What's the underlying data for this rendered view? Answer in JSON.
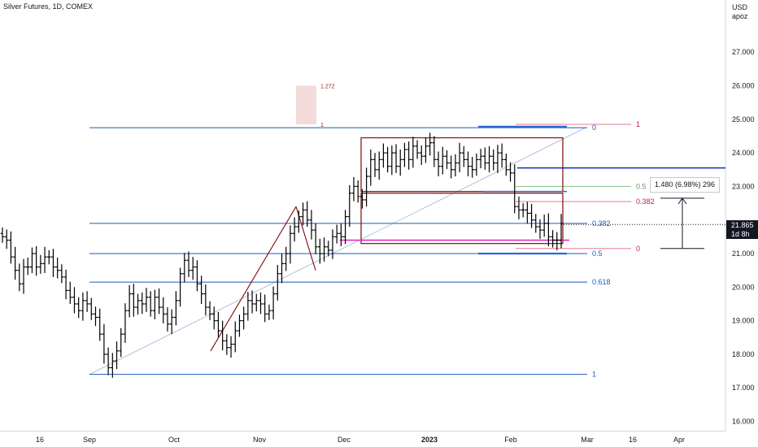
{
  "header": {
    "title": "Silver Futures, 1D, COMEX"
  },
  "price_axis": {
    "unit_line1": "USD",
    "unit_line2": "apoz",
    "current_price": "21.865",
    "countdown": "1d 8h"
  },
  "measure_label": "1.480 (6.98%) 296",
  "colors": {
    "bars": "#000000",
    "fib_blue": "#1e5bb8",
    "fib_level_text": "#1e5bb8",
    "pink": "#e57a95",
    "rect_border": "#8b1a1a",
    "magenta": "#e020c0",
    "dark_blue": "#0a2fb0",
    "trendline": "#b0bfe0",
    "green": "#7fc28a"
  },
  "chart_data": {
    "type": "bar",
    "title": "Silver Futures, 1D, COMEX",
    "ylabel": "USD apoz",
    "ylim": [
      15.9,
      28.2
    ],
    "y_ticks": [
      "16.000",
      "17.000",
      "18.000",
      "19.000",
      "20.000",
      "21.000",
      "22.000",
      "23.000",
      "24.000",
      "25.000",
      "26.000",
      "27.000"
    ],
    "x_ticks": [
      "16",
      "Sep",
      "Oct",
      "Nov",
      "Dec",
      "2023",
      "Feb",
      "Mar",
      "16",
      "Apr"
    ],
    "series": [
      {
        "name": "Silver Futures",
        "closes": [
          21.5,
          21.4,
          20.9,
          20.5,
          20.1,
          20.6,
          20.6,
          21.0,
          20.6,
          20.7,
          20.9,
          20.9,
          20.6,
          20.5,
          20.3,
          19.9,
          19.7,
          19.5,
          19.3,
          19.6,
          19.5,
          19.2,
          19.1,
          18.6,
          18.0,
          17.6,
          17.8,
          18.1,
          18.6,
          19.3,
          19.8,
          19.4,
          19.6,
          19.5,
          19.7,
          19.3,
          19.7,
          19.4,
          19.2,
          18.9,
          19.1,
          19.6,
          20.4,
          20.8,
          20.5,
          20.6,
          20.1,
          19.8,
          19.4,
          19.2,
          19.0,
          18.7,
          18.4,
          18.2,
          18.3,
          18.7,
          19.0,
          19.2,
          19.6,
          19.5,
          19.6,
          19.5,
          19.2,
          19.3,
          19.8,
          20.4,
          20.7,
          21.0,
          21.6,
          21.8,
          22.1,
          22.3,
          22.0,
          21.7,
          21.2,
          21.0,
          21.2,
          21.1,
          21.5,
          21.6,
          21.5,
          22.1,
          22.8,
          23.0,
          22.7,
          22.6,
          23.3,
          23.8,
          23.5,
          23.8,
          24.0,
          23.6,
          24.0,
          23.6,
          23.8,
          24.1,
          23.8,
          24.2,
          24.0,
          23.9,
          24.2,
          24.3,
          23.8,
          23.6,
          23.9,
          23.7,
          23.5,
          23.7,
          24.0,
          23.8,
          23.6,
          23.5,
          23.8,
          23.9,
          23.7,
          23.9,
          23.7,
          24.0,
          23.8,
          23.5,
          23.4,
          22.4,
          22.3,
          22.3,
          22.2,
          22.0,
          21.8,
          21.7,
          21.9,
          21.5,
          21.4,
          21.4,
          21.9
        ],
        "last_close": 21.865
      }
    ],
    "fib_left": {
      "start": 17.4,
      "end": 24.75,
      "levels": [
        {
          "ratio": "0",
          "price": 24.75
        },
        {
          "ratio": "0.382",
          "price": 21.9
        },
        {
          "ratio": "0.5",
          "price": 21.0
        },
        {
          "ratio": "0.618",
          "price": 20.15
        },
        {
          "ratio": "1",
          "price": 17.4
        }
      ]
    },
    "fib_right": {
      "levels": [
        {
          "ratio": "1",
          "price": 24.85
        },
        {
          "ratio": "0.5",
          "price": 23.0
        },
        {
          "ratio": "0.382",
          "price": 22.55
        },
        {
          "ratio": "0",
          "price": 21.15
        }
      ]
    },
    "fib_extension_box": {
      "levels": [
        {
          "ratio": "1.272",
          "price": 26.0
        },
        {
          "ratio": "1",
          "price": 24.85
        }
      ]
    },
    "range_boxes": [
      {
        "top": 24.45,
        "bottom": 22.85
      },
      {
        "top": 22.8,
        "bottom": 21.3
      }
    ],
    "horizontal_lines": [
      {
        "name": "resistance",
        "price": 23.55
      },
      {
        "name": "support-magenta",
        "price": 21.4
      }
    ],
    "measure": {
      "from": 21.15,
      "to": 22.65,
      "label": "1.480 (6.98%) 296"
    }
  }
}
